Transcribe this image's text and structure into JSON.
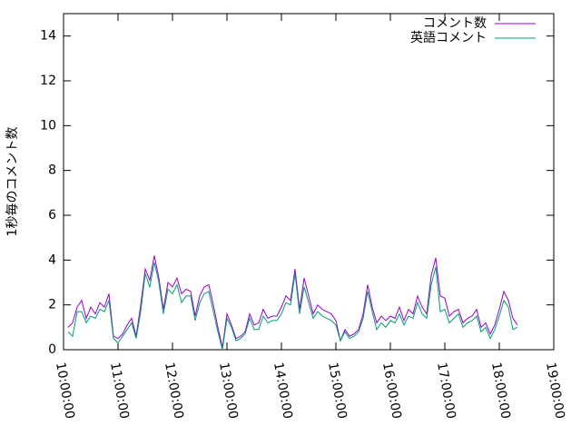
{
  "chart_data": {
    "type": "line",
    "ylabel": "1秒毎のコメント数",
    "x": [
      "10:05:00",
      "10:10:00",
      "10:15:00",
      "10:20:00",
      "10:25:00",
      "10:30:00",
      "10:35:00",
      "10:40:00",
      "10:45:00",
      "10:50:00",
      "10:55:00",
      "11:00:00",
      "11:05:00",
      "11:10:00",
      "11:15:00",
      "11:20:00",
      "11:25:00",
      "11:30:00",
      "11:35:00",
      "11:40:00",
      "11:45:00",
      "11:50:00",
      "11:55:00",
      "12:00:00",
      "12:05:00",
      "12:10:00",
      "12:15:00",
      "12:20:00",
      "12:25:00",
      "12:30:00",
      "12:35:00",
      "12:40:00",
      "12:45:00",
      "12:50:00",
      "12:55:00",
      "13:00:00",
      "13:05:00",
      "13:10:00",
      "13:15:00",
      "13:20:00",
      "13:25:00",
      "13:30:00",
      "13:35:00",
      "13:40:00",
      "13:45:00",
      "13:50:00",
      "13:55:00",
      "14:00:00",
      "14:05:00",
      "14:10:00",
      "14:15:00",
      "14:20:00",
      "14:25:00",
      "14:30:00",
      "14:35:00",
      "14:40:00",
      "14:45:00",
      "14:50:00",
      "14:55:00",
      "15:00:00",
      "15:05:00",
      "15:10:00",
      "15:15:00",
      "15:20:00",
      "15:25:00",
      "15:30:00",
      "15:35:00",
      "15:40:00",
      "15:45:00",
      "15:50:00",
      "15:55:00",
      "16:00:00",
      "16:05:00",
      "16:10:00",
      "16:15:00",
      "16:20:00",
      "16:25:00",
      "16:30:00",
      "16:35:00",
      "16:40:00",
      "16:45:00",
      "16:50:00",
      "16:55:00",
      "17:00:00",
      "17:05:00",
      "17:10:00",
      "17:15:00",
      "17:20:00",
      "17:25:00",
      "17:30:00",
      "17:35:00",
      "17:40:00",
      "17:45:00",
      "17:50:00",
      "17:55:00",
      "18:00:00",
      "18:05:00",
      "18:10:00",
      "18:15:00",
      "18:20:00"
    ],
    "series": [
      {
        "name": "コメント数",
        "color": "#9400d3",
        "values": [
          1.0,
          1.2,
          1.9,
          2.2,
          1.4,
          1.9,
          1.6,
          2.1,
          1.9,
          2.5,
          0.6,
          0.5,
          0.7,
          1.1,
          1.4,
          0.6,
          2.0,
          3.6,
          3.1,
          4.2,
          3.2,
          1.8,
          3.0,
          2.8,
          3.2,
          2.5,
          2.7,
          2.6,
          1.5,
          2.4,
          2.8,
          2.9,
          2.0,
          1.0,
          0.1,
          1.6,
          1.1,
          0.5,
          0.6,
          0.8,
          1.6,
          1.1,
          1.2,
          1.8,
          1.4,
          1.5,
          1.5,
          1.9,
          2.4,
          2.2,
          3.6,
          1.8,
          3.2,
          2.4,
          1.6,
          2.0,
          1.8,
          1.7,
          1.6,
          1.3,
          0.4,
          0.9,
          0.6,
          0.7,
          0.9,
          1.6,
          2.9,
          1.9,
          1.2,
          1.5,
          1.3,
          1.5,
          1.4,
          1.9,
          1.3,
          1.8,
          1.6,
          2.4,
          1.9,
          1.6,
          3.3,
          4.1,
          2.4,
          2.3,
          1.5,
          1.7,
          1.8,
          1.2,
          1.4,
          1.5,
          1.8,
          1.0,
          1.2,
          0.7,
          1.1,
          1.8,
          2.6,
          2.2,
          1.4,
          1.1
        ]
      },
      {
        "name": "英語コメント",
        "color": "#009e73",
        "values": [
          0.8,
          0.6,
          1.7,
          1.7,
          1.2,
          1.5,
          1.4,
          1.8,
          1.7,
          2.2,
          0.5,
          0.3,
          0.6,
          0.9,
          1.2,
          0.5,
          1.7,
          3.4,
          2.8,
          3.9,
          3.0,
          1.6,
          2.7,
          2.5,
          2.9,
          2.1,
          2.4,
          2.4,
          1.3,
          2.1,
          2.5,
          2.6,
          1.7,
          0.8,
          0.0,
          1.4,
          1.0,
          0.4,
          0.5,
          0.7,
          1.4,
          0.9,
          0.9,
          1.5,
          1.2,
          1.3,
          1.3,
          1.6,
          2.1,
          2.0,
          3.4,
          1.6,
          2.8,
          2.1,
          1.4,
          1.7,
          1.5,
          1.4,
          1.3,
          1.1,
          0.4,
          0.8,
          0.5,
          0.6,
          0.8,
          1.4,
          2.6,
          1.7,
          0.9,
          1.2,
          1.0,
          1.3,
          1.2,
          1.6,
          1.1,
          1.5,
          1.4,
          2.1,
          1.6,
          1.4,
          2.9,
          3.7,
          1.7,
          1.8,
          1.2,
          1.4,
          1.6,
          1.0,
          1.2,
          1.3,
          1.5,
          0.8,
          1.0,
          0.5,
          0.9,
          1.5,
          2.2,
          1.9,
          0.9,
          1.0
        ]
      }
    ],
    "xlim": [
      "10:00:00",
      "19:00:00"
    ],
    "xticks": [
      "10:00:00",
      "11:00:00",
      "12:00:00",
      "13:00:00",
      "14:00:00",
      "15:00:00",
      "16:00:00",
      "17:00:00",
      "18:00:00",
      "19:00:00"
    ],
    "ylim": [
      0,
      15
    ],
    "yticks": [
      0,
      2,
      4,
      6,
      8,
      10,
      12,
      14
    ],
    "legend": "top-right"
  }
}
